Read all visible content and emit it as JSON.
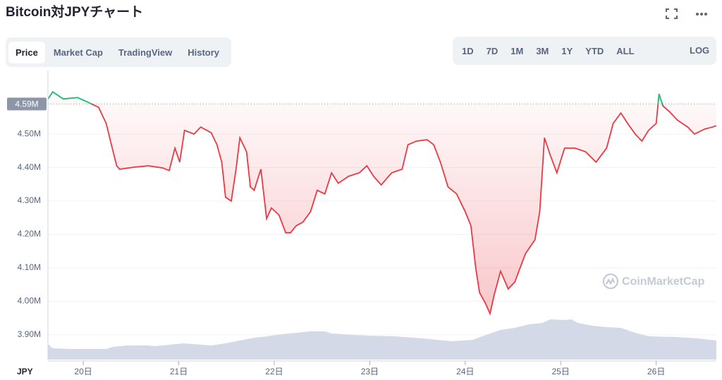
{
  "header": {
    "title": "Bitcoin対JPYチャート"
  },
  "tabs": [
    "Price",
    "Market Cap",
    "TradingView",
    "History"
  ],
  "active_tab": 0,
  "ranges": [
    "1D",
    "7D",
    "1M",
    "3M",
    "1Y",
    "YTD",
    "ALL"
  ],
  "log_button": "LOG",
  "chart_data": {
    "type": "line",
    "x": [
      19.63,
      19.68,
      19.79,
      19.94,
      20.05,
      20.16,
      20.24,
      20.3,
      20.35,
      20.38,
      20.53,
      20.68,
      20.83,
      20.9,
      20.96,
      21.01,
      21.06,
      21.16,
      21.23,
      21.34,
      21.4,
      21.45,
      21.49,
      21.55,
      21.6,
      21.64,
      21.71,
      21.75,
      21.79,
      21.86,
      21.92,
      21.97,
      22.05,
      22.12,
      22.17,
      22.23,
      22.3,
      22.38,
      22.45,
      22.53,
      22.6,
      22.67,
      22.78,
      22.89,
      22.97,
      23.04,
      23.12,
      23.23,
      23.34,
      23.4,
      23.49,
      23.6,
      23.67,
      23.74,
      23.82,
      23.91,
      24.0,
      24.06,
      24.11,
      24.15,
      24.21,
      24.26,
      24.3,
      24.37,
      24.45,
      24.52,
      24.63,
      24.73,
      24.78,
      24.83,
      24.89,
      24.96,
      25.04,
      25.15,
      25.26,
      25.37,
      25.48,
      25.55,
      25.63,
      25.7,
      25.78,
      25.85,
      25.92,
      26.0,
      26.03,
      26.07,
      26.14,
      26.22,
      26.33,
      26.4,
      26.51,
      26.59,
      26.63
    ],
    "values": [
      4605000,
      4626000,
      4605000,
      4609000,
      4595000,
      4580000,
      4532000,
      4462000,
      4405000,
      4395000,
      4401000,
      4405000,
      4399000,
      4391000,
      4458000,
      4416000,
      4511000,
      4500000,
      4521000,
      4504000,
      4468000,
      4416000,
      4311000,
      4300000,
      4395000,
      4489000,
      4447000,
      4342000,
      4332000,
      4395000,
      4247000,
      4279000,
      4258000,
      4205000,
      4205000,
      4226000,
      4237000,
      4268000,
      4332000,
      4321000,
      4384000,
      4353000,
      4374000,
      4384000,
      4405000,
      4374000,
      4348000,
      4384000,
      4395000,
      4468000,
      4479000,
      4483000,
      4468000,
      4416000,
      4342000,
      4321000,
      4268000,
      4226000,
      4100000,
      4026000,
      3995000,
      3963000,
      4016000,
      4090000,
      4037000,
      4058000,
      4142000,
      4184000,
      4268000,
      4489000,
      4437000,
      4384000,
      4458000,
      4458000,
      4447000,
      4416000,
      4458000,
      4532000,
      4563000,
      4532000,
      4500000,
      4479000,
      4511000,
      4532000,
      4620000,
      4584000,
      4567000,
      4542000,
      4521000,
      4500000,
      4515000,
      4521000,
      4525000
    ],
    "color_above": "#16c784",
    "color_below": "#ea3943",
    "reference": {
      "value": 4590000,
      "label": "4.59M"
    },
    "xlim": [
      19.63,
      26.63
    ],
    "xticks": [
      {
        "value": 20,
        "label": "20日"
      },
      {
        "value": 21,
        "label": "21日"
      },
      {
        "value": 22,
        "label": "22日"
      },
      {
        "value": 23,
        "label": "23日"
      },
      {
        "value": 24,
        "label": "24日"
      },
      {
        "value": 25,
        "label": "25日"
      },
      {
        "value": 26,
        "label": "26日"
      }
    ],
    "ylim": [
      3826000,
      4690000
    ],
    "yticks": [
      {
        "value": 3900000,
        "label": "3.90M"
      },
      {
        "value": 4000000,
        "label": "4.00M"
      },
      {
        "value": 4100000,
        "label": "4.10M"
      },
      {
        "value": 4200000,
        "label": "4.20M"
      },
      {
        "value": 4300000,
        "label": "4.30M"
      },
      {
        "value": 4400000,
        "label": "4.40M"
      },
      {
        "value": 4500000,
        "label": "4.50M"
      }
    ],
    "grid": true,
    "x_unit_label": "JPY",
    "watermark": "CoinMarketCap",
    "volume": {
      "color": "#d3d9e6",
      "x": [
        19.63,
        19.68,
        19.87,
        20.24,
        20.31,
        20.46,
        20.68,
        20.75,
        21.05,
        21.34,
        21.49,
        21.64,
        21.79,
        21.93,
        22.08,
        22.23,
        22.38,
        22.53,
        22.6,
        22.82,
        22.97,
        23.26,
        23.56,
        23.85,
        24.08,
        24.22,
        24.37,
        24.52,
        24.67,
        24.81,
        24.89,
        25.04,
        25.11,
        25.18,
        25.33,
        25.48,
        25.63,
        25.78,
        25.92,
        26.22,
        26.44,
        26.63
      ],
      "values": [
        22,
        16,
        15,
        15,
        18,
        20,
        20,
        19,
        23,
        20,
        23,
        27,
        31,
        33,
        36,
        38,
        40,
        40,
        37,
        35,
        34,
        33,
        30,
        26,
        28,
        35,
        42,
        45,
        50,
        52,
        57,
        56,
        57,
        52,
        48,
        46,
        45,
        38,
        33,
        32,
        30,
        27
      ]
    }
  }
}
